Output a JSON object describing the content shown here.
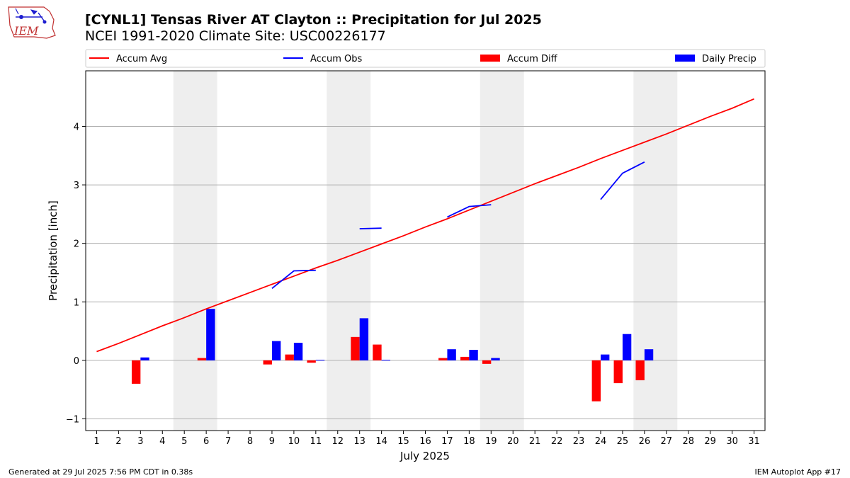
{
  "header": {
    "title": "[CYNL1] Tensas River  AT Clayton :: Precipitation for Jul 2025",
    "subtitle": "NCEI 1991-2020 Climate Site: USC00226177",
    "logo_text": "IEM"
  },
  "footer": {
    "generated": "Generated at 29 Jul 2025 7:56 PM CDT in 0.38s",
    "app": "IEM Autoplot App #17"
  },
  "colors": {
    "accum_avg": "#ff0000",
    "accum_obs": "#0000ff",
    "accum_diff": "#ff0000",
    "daily_precip": "#0000ff",
    "weekend_shade": "#eeeeee",
    "grid": "#b0b0b0"
  },
  "chart_data": {
    "type": "bar",
    "xlabel": "July 2025",
    "ylabel": "Precipitation [inch]",
    "xlim": [
      0.5,
      31.5
    ],
    "ylim": [
      -1.2,
      4.95
    ],
    "x_ticks": [
      1,
      2,
      3,
      4,
      5,
      6,
      7,
      8,
      9,
      10,
      11,
      12,
      13,
      14,
      15,
      16,
      17,
      18,
      19,
      20,
      21,
      22,
      23,
      24,
      25,
      26,
      27,
      28,
      29,
      30,
      31
    ],
    "y_ticks": [
      -1,
      0,
      1,
      2,
      3,
      4
    ],
    "grid": "horizontal",
    "legend": {
      "placement": "top",
      "entries": [
        {
          "label": "Accum Avg",
          "kind": "line",
          "color": "#ff0000"
        },
        {
          "label": "Accum Obs",
          "kind": "line",
          "color": "#0000ff"
        },
        {
          "label": "Accum Diff",
          "kind": "bar",
          "color": "#ff0000"
        },
        {
          "label": "Daily Precip",
          "kind": "bar",
          "color": "#0000ff"
        }
      ]
    },
    "shaded_weekends": [
      [
        5,
        6
      ],
      [
        12,
        13
      ],
      [
        19,
        20
      ],
      [
        26,
        27
      ]
    ],
    "series": [
      {
        "name": "Accum Avg",
        "kind": "line",
        "x": [
          1,
          2,
          3,
          4,
          5,
          6,
          7,
          8,
          9,
          10,
          11,
          12,
          13,
          14,
          15,
          16,
          17,
          18,
          19,
          20,
          21,
          22,
          23,
          24,
          25,
          26,
          27,
          28,
          29,
          30,
          31
        ],
        "values": [
          0.15,
          0.29,
          0.44,
          0.59,
          0.73,
          0.88,
          1.02,
          1.16,
          1.3,
          1.44,
          1.58,
          1.71,
          1.85,
          1.99,
          2.13,
          2.28,
          2.42,
          2.57,
          2.72,
          2.87,
          3.02,
          3.16,
          3.3,
          3.45,
          3.59,
          3.73,
          3.87,
          4.02,
          4.17,
          4.31,
          4.47
        ]
      },
      {
        "name": "Accum Obs",
        "kind": "line",
        "x": [
          9,
          10,
          11,
          null,
          13,
          14,
          null,
          17,
          18,
          19,
          null,
          24,
          25,
          26
        ],
        "values": [
          1.23,
          1.53,
          1.54,
          null,
          2.25,
          2.26,
          null,
          2.45,
          2.63,
          2.66,
          null,
          2.75,
          3.2,
          3.39
        ]
      },
      {
        "name": "Accum Diff",
        "kind": "bar",
        "x": [
          3,
          6,
          9,
          10,
          11,
          13,
          14,
          17,
          18,
          19,
          24,
          25,
          26
        ],
        "values": [
          -0.4,
          0.04,
          -0.07,
          0.1,
          -0.04,
          0.4,
          0.27,
          0.04,
          0.06,
          -0.06,
          -0.7,
          -0.39,
          -0.34
        ]
      },
      {
        "name": "Daily Precip",
        "kind": "bar",
        "x": [
          3,
          6,
          9,
          10,
          11,
          13,
          14,
          17,
          18,
          19,
          24,
          25,
          26
        ],
        "values": [
          0.05,
          0.88,
          0.33,
          0.3,
          0.01,
          0.72,
          0.01,
          0.19,
          0.18,
          0.04,
          0.1,
          0.45,
          0.19
        ]
      }
    ]
  }
}
